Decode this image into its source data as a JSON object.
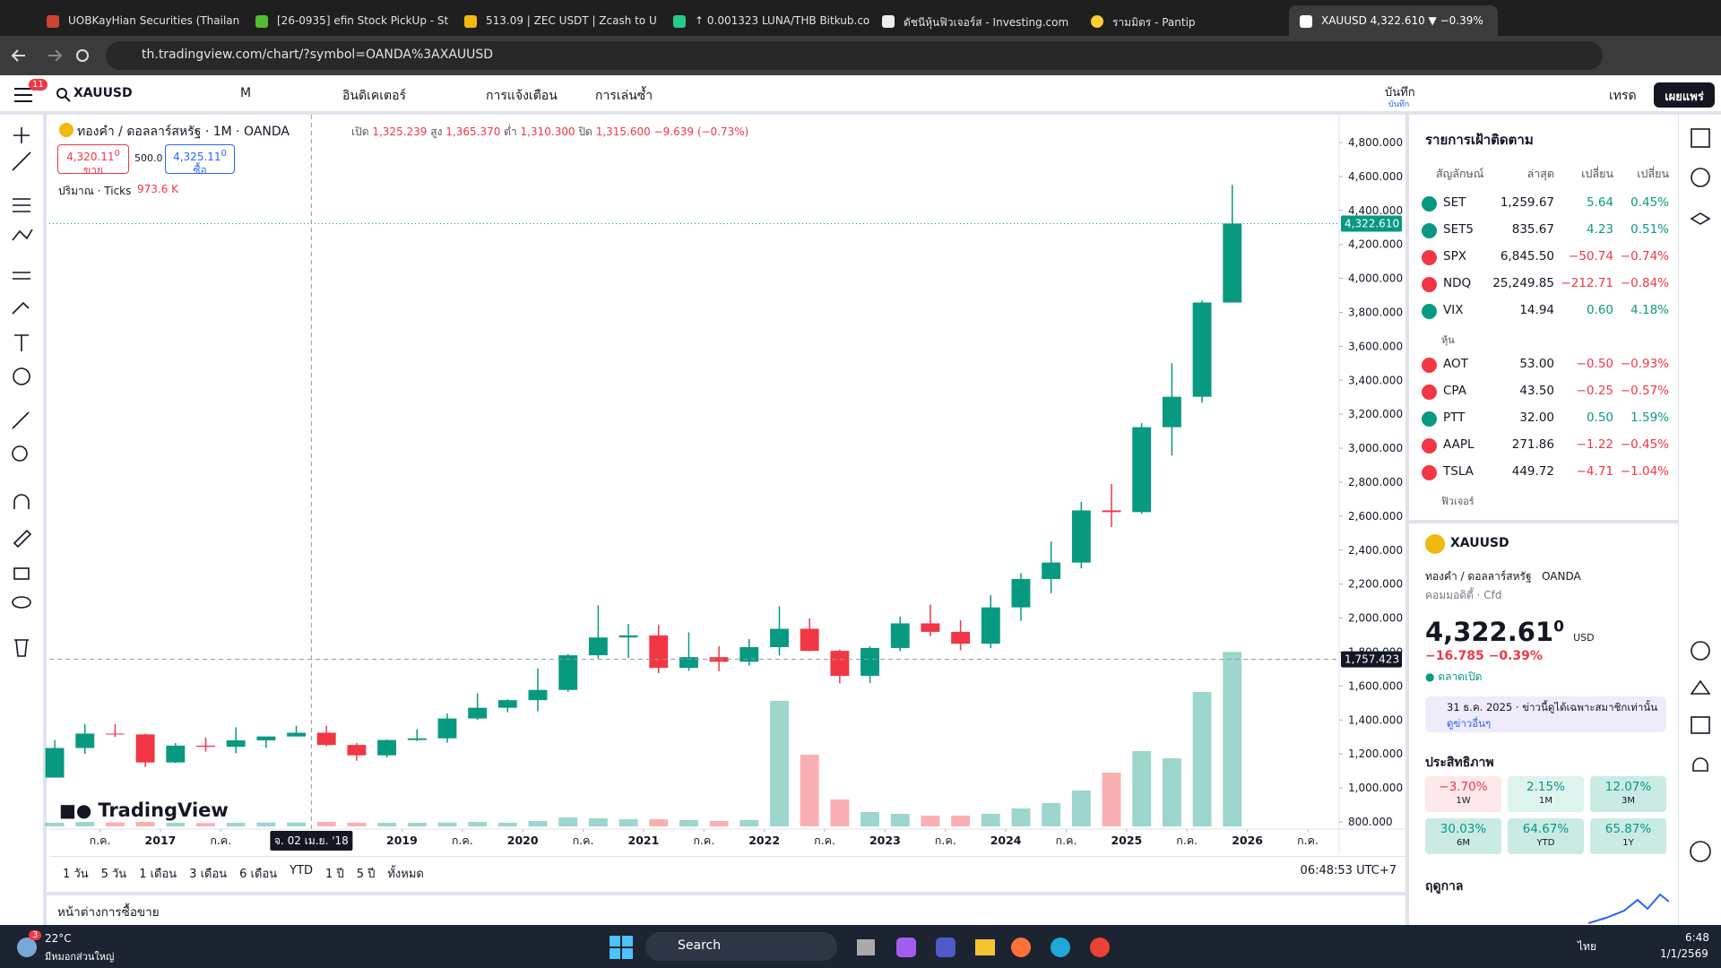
{
  "tabs": [
    "UOBKayHian Securities (Thailan",
    "[26-0935] efin Stock PickUp - St",
    "513.09 | ZEC USDT | Zcash to U",
    "↑ 0.001323 LUNA/THB Bitkub.co",
    "ดัชนีหุ้นฟิวเจอร์ส - Investing.com",
    "รามมิตร - Pantip",
    "XAUUSD 4,322.610 ▼ −0.39%"
  ],
  "address": "th.tradingview.com/chart/?symbol=OANDA%3AXAUUSD",
  "toolbar": {
    "badge": "11",
    "symbol": "XAUUSD",
    "interval": "M",
    "indicators": "อินดิเคเตอร์",
    "alerts": "การแจ้งเตือน",
    "replay": "การเล่นซ้ำ",
    "save": "บันทึก",
    "save_sub": "บันทึก",
    "trade": "เทรด",
    "publish": "เผยแพร่"
  },
  "legend": {
    "title": "ทองคำ / ดอลลาร์สหรัฐ · 1M · OANDA",
    "o_label": "เปิด",
    "o": "1,325.239",
    "h_label": "สูง",
    "h": "1,365.370",
    "l_label": "ต่ำ",
    "l": "1,310.300",
    "c_label": "ปิด",
    "c": "1,315.600",
    "change": "−9.639 (−0.73%)",
    "sell": "4,320.11",
    "sell_sup": "0",
    "sell_label": "ขาย",
    "spread": "500.0",
    "buy": "4,325.11",
    "buy_sup": "0",
    "buy_label": "ซื้อ",
    "volume_label": "ปริมาณ · Ticks",
    "volume_value": "973.6 K"
  },
  "chart_logo": "TradingView",
  "chart_data": {
    "type": "candlestick",
    "up_color": "#089981",
    "down_color": "#f23645",
    "x": [
      2016.125,
      2016.375,
      2016.625,
      2016.875,
      2017.125,
      2017.375,
      2017.625,
      2017.875,
      2018.125,
      2018.375,
      2018.625,
      2018.875,
      2019.125,
      2019.375,
      2019.625,
      2019.875,
      2020.125,
      2020.375,
      2020.625,
      2020.875,
      2021.125,
      2021.375,
      2021.625,
      2021.875,
      2022.125,
      2022.375,
      2022.625,
      2022.875,
      2023.125,
      2023.375,
      2023.625,
      2023.875,
      2024.125,
      2024.375,
      2024.625,
      2024.875,
      2025.125,
      2025.375,
      2025.625,
      2025.875
    ],
    "open": [
      1061,
      1235,
      1320,
      1315,
      1150,
      1249,
      1242,
      1280,
      1303,
      1325,
      1253,
      1192,
      1282,
      1292,
      1409,
      1472,
      1517,
      1577,
      1781,
      1886,
      1898,
      1707,
      1770,
      1743,
      1829,
      1937,
      1807,
      1660,
      1824,
      1969,
      1919,
      1849,
      2063,
      2230,
      2327,
      2634,
      2624,
      3124,
      3303,
      3858
    ],
    "high": [
      1282,
      1375,
      1375,
      1320,
      1264,
      1296,
      1357,
      1300,
      1366,
      1365,
      1265,
      1285,
      1346,
      1438,
      1557,
      1522,
      1703,
      1789,
      2075,
      1965,
      1959,
      1916,
      1834,
      1877,
      2070,
      1998,
      1814,
      1834,
      2009,
      2079,
      1987,
      2135,
      2265,
      2451,
      2685,
      2790,
      3148,
      3500,
      3870,
      4550
    ],
    "low": [
      1061,
      1200,
      1300,
      1123,
      1146,
      1214,
      1204,
      1236,
      1302,
      1245,
      1160,
      1180,
      1276,
      1266,
      1400,
      1445,
      1451,
      1566,
      1760,
      1764,
      1676,
      1690,
      1687,
      1720,
      1780,
      1805,
      1615,
      1617,
      1804,
      1893,
      1810,
      1823,
      1984,
      2146,
      2293,
      2536,
      2615,
      2957,
      3268,
      3886
    ],
    "close": [
      1235,
      1320,
      1315,
      1150,
      1249,
      1242,
      1280,
      1303,
      1325,
      1253,
      1192,
      1282,
      1292,
      1409,
      1472,
      1517,
      1577,
      1781,
      1886,
      1898,
      1707,
      1770,
      1743,
      1829,
      1937,
      1807,
      1660,
      1824,
      1969,
      1919,
      1849,
      2063,
      2230,
      2327,
      2634,
      2624,
      3124,
      3303,
      3858,
      4322.61
    ],
    "volume": [
      20,
      25,
      22,
      25,
      20,
      18,
      20,
      22,
      22,
      25,
      20,
      20,
      20,
      22,
      25,
      20,
      30,
      50,
      45,
      40,
      40,
      35,
      30,
      35,
      700,
      400,
      150,
      80,
      70,
      60,
      60,
      70,
      100,
      130,
      200,
      300,
      420,
      380,
      750,
      973.6
    ],
    "volume_lim": [
      0,
      1000
    ],
    "xlim": [
      2016.08,
      2026.76
    ],
    "xticks": [
      {
        "value": 2016.5,
        "label": "ก.ค."
      },
      2017,
      {
        "value": 2017.5,
        "label": "ก.ค."
      },
      2019,
      {
        "value": 2019.5,
        "label": "ก.ค."
      },
      2020,
      {
        "value": 2020.5,
        "label": "ก.ค."
      },
      2021,
      {
        "value": 2021.5,
        "label": "ก.ค."
      },
      2022,
      {
        "value": 2022.5,
        "label": "ก.ค."
      },
      2023,
      {
        "value": 2023.5,
        "label": "ก.ค."
      },
      2024,
      {
        "value": 2024.5,
        "label": "ก.ค."
      },
      2025,
      {
        "value": 2025.5,
        "label": "ก.ค."
      },
      2026,
      {
        "value": 2026.5,
        "label": "ก.ค."
      }
    ],
    "ylim": [
      800,
      4800
    ],
    "yticks": [
      {
        "value": 800,
        "label": "800.000"
      },
      {
        "value": 1000,
        "label": "1,000.000"
      },
      {
        "value": 1200,
        "label": "1,200.000"
      },
      {
        "value": 1400,
        "label": "1,400.000"
      },
      {
        "value": 1600,
        "label": "1,600.000"
      },
      {
        "value": 1800,
        "label": "1,800.000"
      },
      {
        "value": 2000,
        "label": "2,000.000"
      },
      {
        "value": 2200,
        "label": "2,200.000"
      },
      {
        "value": 2400,
        "label": "2,400.000"
      },
      {
        "value": 2600,
        "label": "2,600.000"
      },
      {
        "value": 2800,
        "label": "2,800.000"
      },
      {
        "value": 3000,
        "label": "3,000.000"
      },
      {
        "value": 3200,
        "label": "3,200.000"
      },
      {
        "value": 3400,
        "label": "3,400.000"
      },
      {
        "value": 3600,
        "label": "3,600.000"
      },
      {
        "value": 3800,
        "label": "3,800.000"
      },
      {
        "value": 4000,
        "label": "4,000.000"
      },
      {
        "value": 4200,
        "label": "4,200.000"
      },
      {
        "value": 4400,
        "label": "4,400.000"
      },
      {
        "value": 4600,
        "label": "4,600.000"
      },
      {
        "value": 4800,
        "label": "4,800.000"
      }
    ],
    "price_line": {
      "value": 4322.61,
      "label": "4,322.610"
    },
    "crosshair": {
      "x": {
        "value": 2018.25,
        "label": "จ. 02 เม.ย. '18"
      },
      "y": {
        "value": 1757.423,
        "label": "1,757.423"
      }
    }
  },
  "range_bar": {
    "ranges": [
      "1 วัน",
      "5 วัน",
      "1 เดือน",
      "3 เดือน",
      "6 เดือน",
      "YTD",
      "1 ปี",
      "5 ปี",
      "ทั้งหมด"
    ],
    "time": "06:48:53 UTC+7"
  },
  "trading_panel": "หน้าต่างการซื้อขาย",
  "watchlist": {
    "title": "รายการเฝ้าติดตาม",
    "columns": [
      "สัญลักษณ์",
      "ล่าสุด",
      "เปลี่ยน",
      "เปลี่ยน"
    ],
    "groups": [
      {
        "name": null,
        "rows": [
          {
            "symbol": "SET",
            "last": "1,259.67",
            "change": "5.64",
            "change_pct": "0.45%",
            "color": "#089981"
          },
          {
            "symbol": "SET5",
            "last": "835.67",
            "change": "4.23",
            "change_pct": "0.51%",
            "color": "#089981"
          },
          {
            "symbol": "SPX",
            "last": "6,845.50",
            "change": "−50.74",
            "change_pct": "−0.74%",
            "color": "#f23645"
          },
          {
            "symbol": "NDQ",
            "last": "25,249.85",
            "change": "−212.71",
            "change_pct": "−0.84%",
            "color": "#f23645"
          },
          {
            "symbol": "VIX",
            "last": "14.94",
            "change": "0.60",
            "change_pct": "4.18%",
            "color": "#089981"
          }
        ]
      },
      {
        "name": "หุ้น",
        "rows": [
          {
            "symbol": "AOT",
            "last": "53.00",
            "change": "−0.50",
            "change_pct": "−0.93%",
            "color": "#f23645"
          },
          {
            "symbol": "CPA",
            "last": "43.50",
            "change": "−0.25",
            "change_pct": "−0.57%",
            "color": "#f23645"
          },
          {
            "symbol": "PTT",
            "last": "32.00",
            "change": "0.50",
            "change_pct": "1.59%",
            "color": "#089981"
          },
          {
            "symbol": "AAPL",
            "last": "271.86",
            "change": "−1.22",
            "change_pct": "−0.45%",
            "color": "#f23645"
          },
          {
            "symbol": "TSLA",
            "last": "449.72",
            "change": "−4.71",
            "change_pct": "−1.04%",
            "color": "#f23645"
          }
        ]
      },
      {
        "name": "ฟิวเจอร์",
        "rows": []
      }
    ]
  },
  "details": {
    "symbol": "XAUUSD",
    "name": "ทองคำ / ดอลลาร์สหรัฐ",
    "exchange": "OANDA",
    "category": "คอมมอดิตี้ · Cfd",
    "price": "4,322.61",
    "price_sup": "0",
    "currency": "USD",
    "change": "−16.785",
    "change_pct": "−0.39%",
    "market_status": "ตลาดเปิด",
    "news_date": "31 ธ.ค. 2025",
    "news_text": "· ข่าวนี้ดูได้เฉพาะสมาชิกเท่านั้น",
    "news_link": "ดูข่าวอื่นๆ",
    "performance_title": "ประสิทธิภาพ",
    "performance": [
      {
        "value": "−3.70%",
        "period": "1W",
        "color": "#f23645",
        "bg": "#fde8ea"
      },
      {
        "value": "2.15%",
        "period": "1M",
        "color": "#089981",
        "bg": "#dff3ee"
      },
      {
        "value": "12.07%",
        "period": "3M",
        "color": "#089981",
        "bg": "#c9ebe3"
      },
      {
        "value": "30.03%",
        "period": "6M",
        "color": "#089981",
        "bg": "#c9ebe3"
      },
      {
        "value": "64.67%",
        "period": "YTD",
        "color": "#089981",
        "bg": "#c9ebe3"
      },
      {
        "value": "65.87%",
        "period": "1Y",
        "color": "#089981",
        "bg": "#c9ebe3"
      }
    ],
    "seasonals_title": "ฤดูกาล"
  },
  "taskbar": {
    "temperature": "22°C",
    "weather": "มีหมอกส่วนใหญ่",
    "weather_badge": "3",
    "search": "Search",
    "language": "ไทย",
    "time": "6:48",
    "date": "1/1/2569"
  }
}
